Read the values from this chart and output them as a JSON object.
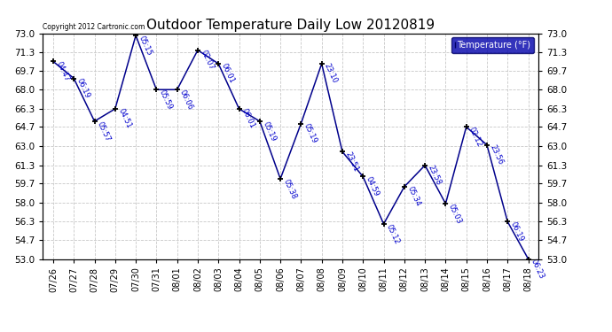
{
  "title": "Outdoor Temperature Daily Low 20120819",
  "copyright_text": "Copyright 2012 Cartronic.com",
  "legend_label": "Temperature (°F)",
  "x_labels": [
    "07/26",
    "07/27",
    "07/28",
    "07/29",
    "07/30",
    "07/31",
    "08/01",
    "08/02",
    "08/03",
    "08/04",
    "08/05",
    "08/06",
    "08/07",
    "08/08",
    "08/09",
    "08/10",
    "08/11",
    "08/12",
    "08/13",
    "08/14",
    "08/15",
    "08/16",
    "08/17",
    "08/18"
  ],
  "y_values": [
    70.5,
    69.0,
    65.2,
    66.3,
    72.8,
    68.0,
    68.0,
    71.5,
    70.3,
    66.3,
    65.2,
    60.1,
    65.0,
    70.3,
    62.5,
    60.3,
    56.1,
    59.4,
    61.3,
    57.9,
    64.7,
    63.1,
    56.3,
    53.0
  ],
  "annotations": [
    "04:47",
    "06:19",
    "05:57",
    "04:51",
    "05:15",
    "05:59",
    "06:06",
    "02:07",
    "06:01",
    "06:01",
    "05:19",
    "05:38",
    "05:19",
    "23:10",
    "23:51",
    "04:59",
    "05:12",
    "05:34",
    "23:58",
    "05:03",
    "02:12",
    "23:56",
    "06:19",
    "06:23"
  ],
  "y_min": 53.0,
  "y_max": 73.0,
  "y_ticks": [
    53.0,
    54.7,
    56.3,
    58.0,
    59.7,
    61.3,
    63.0,
    64.7,
    66.3,
    68.0,
    69.7,
    71.3,
    73.0
  ],
  "line_color": "#00008B",
  "marker_color": "#000000",
  "annotation_color": "#0000CD",
  "bg_color": "#FFFFFF",
  "grid_color": "#C8C8C8",
  "title_fontsize": 11,
  "legend_bg": "#0000AA",
  "legend_fg": "#FFFFFF"
}
